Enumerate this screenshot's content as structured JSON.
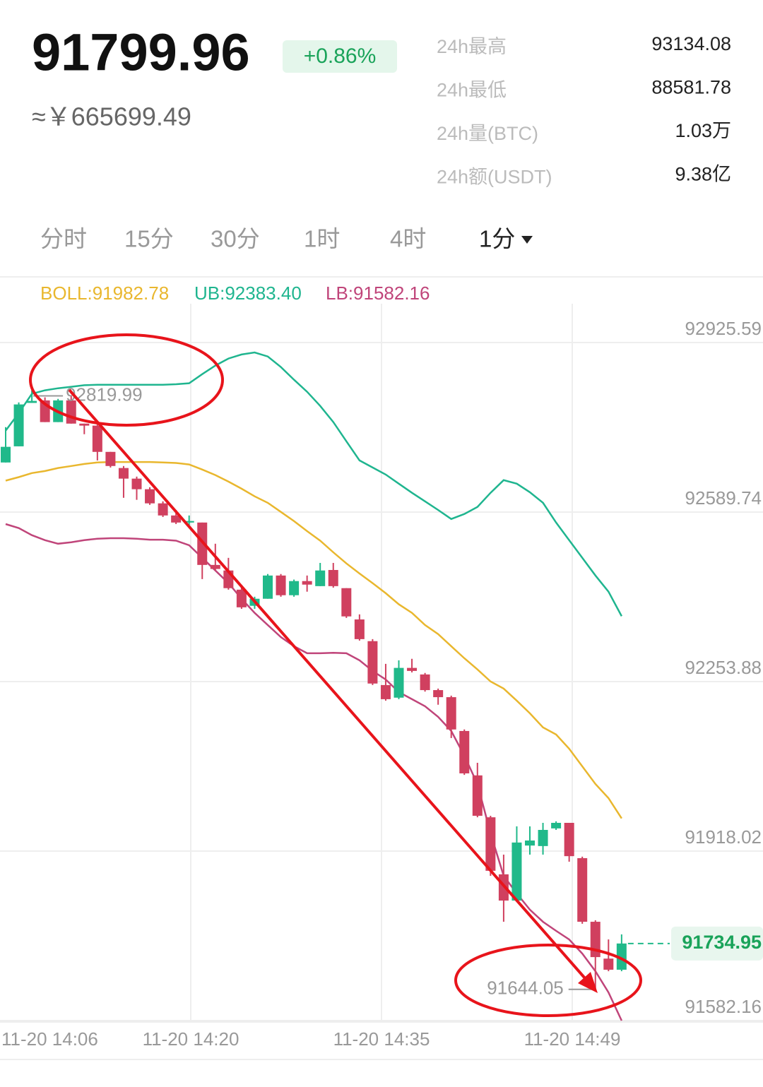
{
  "header": {
    "price": "91799.96",
    "change": "+0.86%",
    "cny": "≈￥665699.49",
    "stats": [
      {
        "label": "24h最高",
        "value": "93134.08"
      },
      {
        "label": "24h最低",
        "value": "88581.78"
      },
      {
        "label": "24h量(BTC)",
        "value": "1.03万"
      },
      {
        "label": "24h额(USDT)",
        "value": "9.38亿"
      }
    ]
  },
  "tabs": [
    "分时",
    "15分",
    "30分",
    "1时",
    "4时",
    "1分"
  ],
  "chart_data": {
    "type": "candlestick",
    "up_color": "#20b98a",
    "down_color": "#d0405f",
    "open": [
      92688,
      92720,
      92806,
      92811,
      92768,
      92811,
      92765,
      92761,
      92709,
      92677,
      92656,
      92635,
      92607,
      92583,
      92569,
      92569,
      92485,
      92474,
      92436,
      92404,
      92418,
      92464,
      92425,
      92453,
      92443,
      92475,
      92439,
      92377,
      92334,
      92247,
      92222,
      92281,
      92268,
      92237,
      92223,
      92156,
      92068,
      91985,
      91872,
      91820,
      91929,
      91928,
      91963,
      91974,
      91904,
      91778,
      91705,
      91683
    ],
    "high": [
      92758,
      92807,
      92831,
      92817,
      92814,
      92819.99,
      92765,
      92768,
      92709,
      92681,
      92660,
      92639,
      92611,
      92594,
      92583,
      92569,
      92527,
      92499,
      92443,
      92422,
      92467,
      92467,
      92456,
      92464,
      92489,
      92489,
      92439,
      92387,
      92338,
      92289,
      92296,
      92299,
      92271,
      92240,
      92226,
      92159,
      92093,
      91988,
      91911,
      91967,
      91967,
      91974,
      91977,
      91974,
      91907,
      91781,
      91743,
      91753
    ],
    "low": [
      92688,
      92720,
      92806,
      92768,
      92768,
      92765,
      92744,
      92692,
      92678,
      92618,
      92614,
      92604,
      92580,
      92566,
      92562,
      92457,
      92474,
      92436,
      92398,
      92398,
      92418,
      92422,
      92422,
      92432,
      92443,
      92440,
      92380,
      92335,
      92247,
      92216,
      92219,
      92272,
      92234,
      92208,
      92142,
      92069,
      91985,
      91869,
      91778,
      91817,
      91911,
      91911,
      91960,
      91897,
      91774,
      91644.05,
      91680,
      91680
    ],
    "close": [
      92719,
      92803,
      92810,
      92768,
      92811,
      92765,
      92761,
      92709,
      92681,
      92656,
      92635,
      92607,
      92583,
      92569,
      92572,
      92485,
      92477,
      92439,
      92401,
      92418,
      92464,
      92425,
      92453,
      92446,
      92474,
      92443,
      92383,
      92338,
      92250,
      92219,
      92281,
      92275,
      92237,
      92223,
      92159,
      92072,
      91988,
      91879,
      91820,
      91935,
      91939,
      91960,
      91974,
      91908,
      91778,
      91708,
      91683,
      91734.95
    ],
    "series": [
      {
        "name": "BOLL:91982.78",
        "color": "#e9b72e",
        "values": [
          92652,
          92659,
          92667,
          92671,
          92677,
          92681,
          92685,
          92688,
          92689,
          92689,
          92689,
          92689,
          92688,
          92687,
          92684,
          92674,
          92663,
          92650,
          92636,
          92621,
          92608,
          92590,
          92572,
          92552,
          92533,
          92510,
          92488,
          92468,
          92449,
          92429,
          92407,
          92390,
          92366,
          92348,
          92324,
          92300,
          92278,
          92254,
          92240,
          92216,
          92191,
          92163,
          92149,
          92121,
          92086,
          92051,
          92023,
          91982.78
        ]
      },
      {
        "name": "UB:92383.40",
        "color": "#1fb58f",
        "values": [
          92751,
          92786,
          92824,
          92831,
          92835,
          92838,
          92841,
          92842,
          92842,
          92842,
          92842,
          92842,
          92842,
          92843,
          92845,
          92863,
          92880,
          92894,
          92902,
          92906,
          92898,
          92877,
          92852,
          92828,
          92800,
          92768,
          92730,
          92692,
          92678,
          92664,
          92646,
          92628,
          92611,
          92594,
          92576,
          92586,
          92600,
          92628,
          92653,
          92646,
          92629,
          92608,
          92569,
          92534,
          92499,
          92464,
          92432,
          92383.4
        ]
      },
      {
        "name": "LB:91582.16",
        "color": "#c0457a",
        "values": [
          92566,
          92558,
          92544,
          92534,
          92527,
          92530,
          92534,
          92537,
          92538,
          92538,
          92537,
          92535,
          92535,
          92533,
          92524,
          92499,
          92474,
          92449,
          92418,
          92390,
          92366,
          92342,
          92324,
          92310,
          92310,
          92311,
          92310,
          92296,
          92275,
          92258,
          92233,
          92219,
          92205,
          92184,
          92156,
          92107,
          92051,
          91953,
          91869,
          91834,
          91802,
          91778,
          91760,
          91743,
          91715,
          91680,
          91638,
          91582.16
        ]
      }
    ],
    "ylim": [
      91582.16,
      92981.57
    ],
    "yticks": [
      92925.59,
      92589.74,
      92253.88,
      91918.02,
      91582.16
    ],
    "grid": true,
    "xticks": [
      "11-20 14:06",
      "11-20 14:20",
      "11-20 14:35",
      "11-20 14:49"
    ],
    "high_label": 92819.99,
    "low_label": 91644.05,
    "last_price": 91734.95
  }
}
